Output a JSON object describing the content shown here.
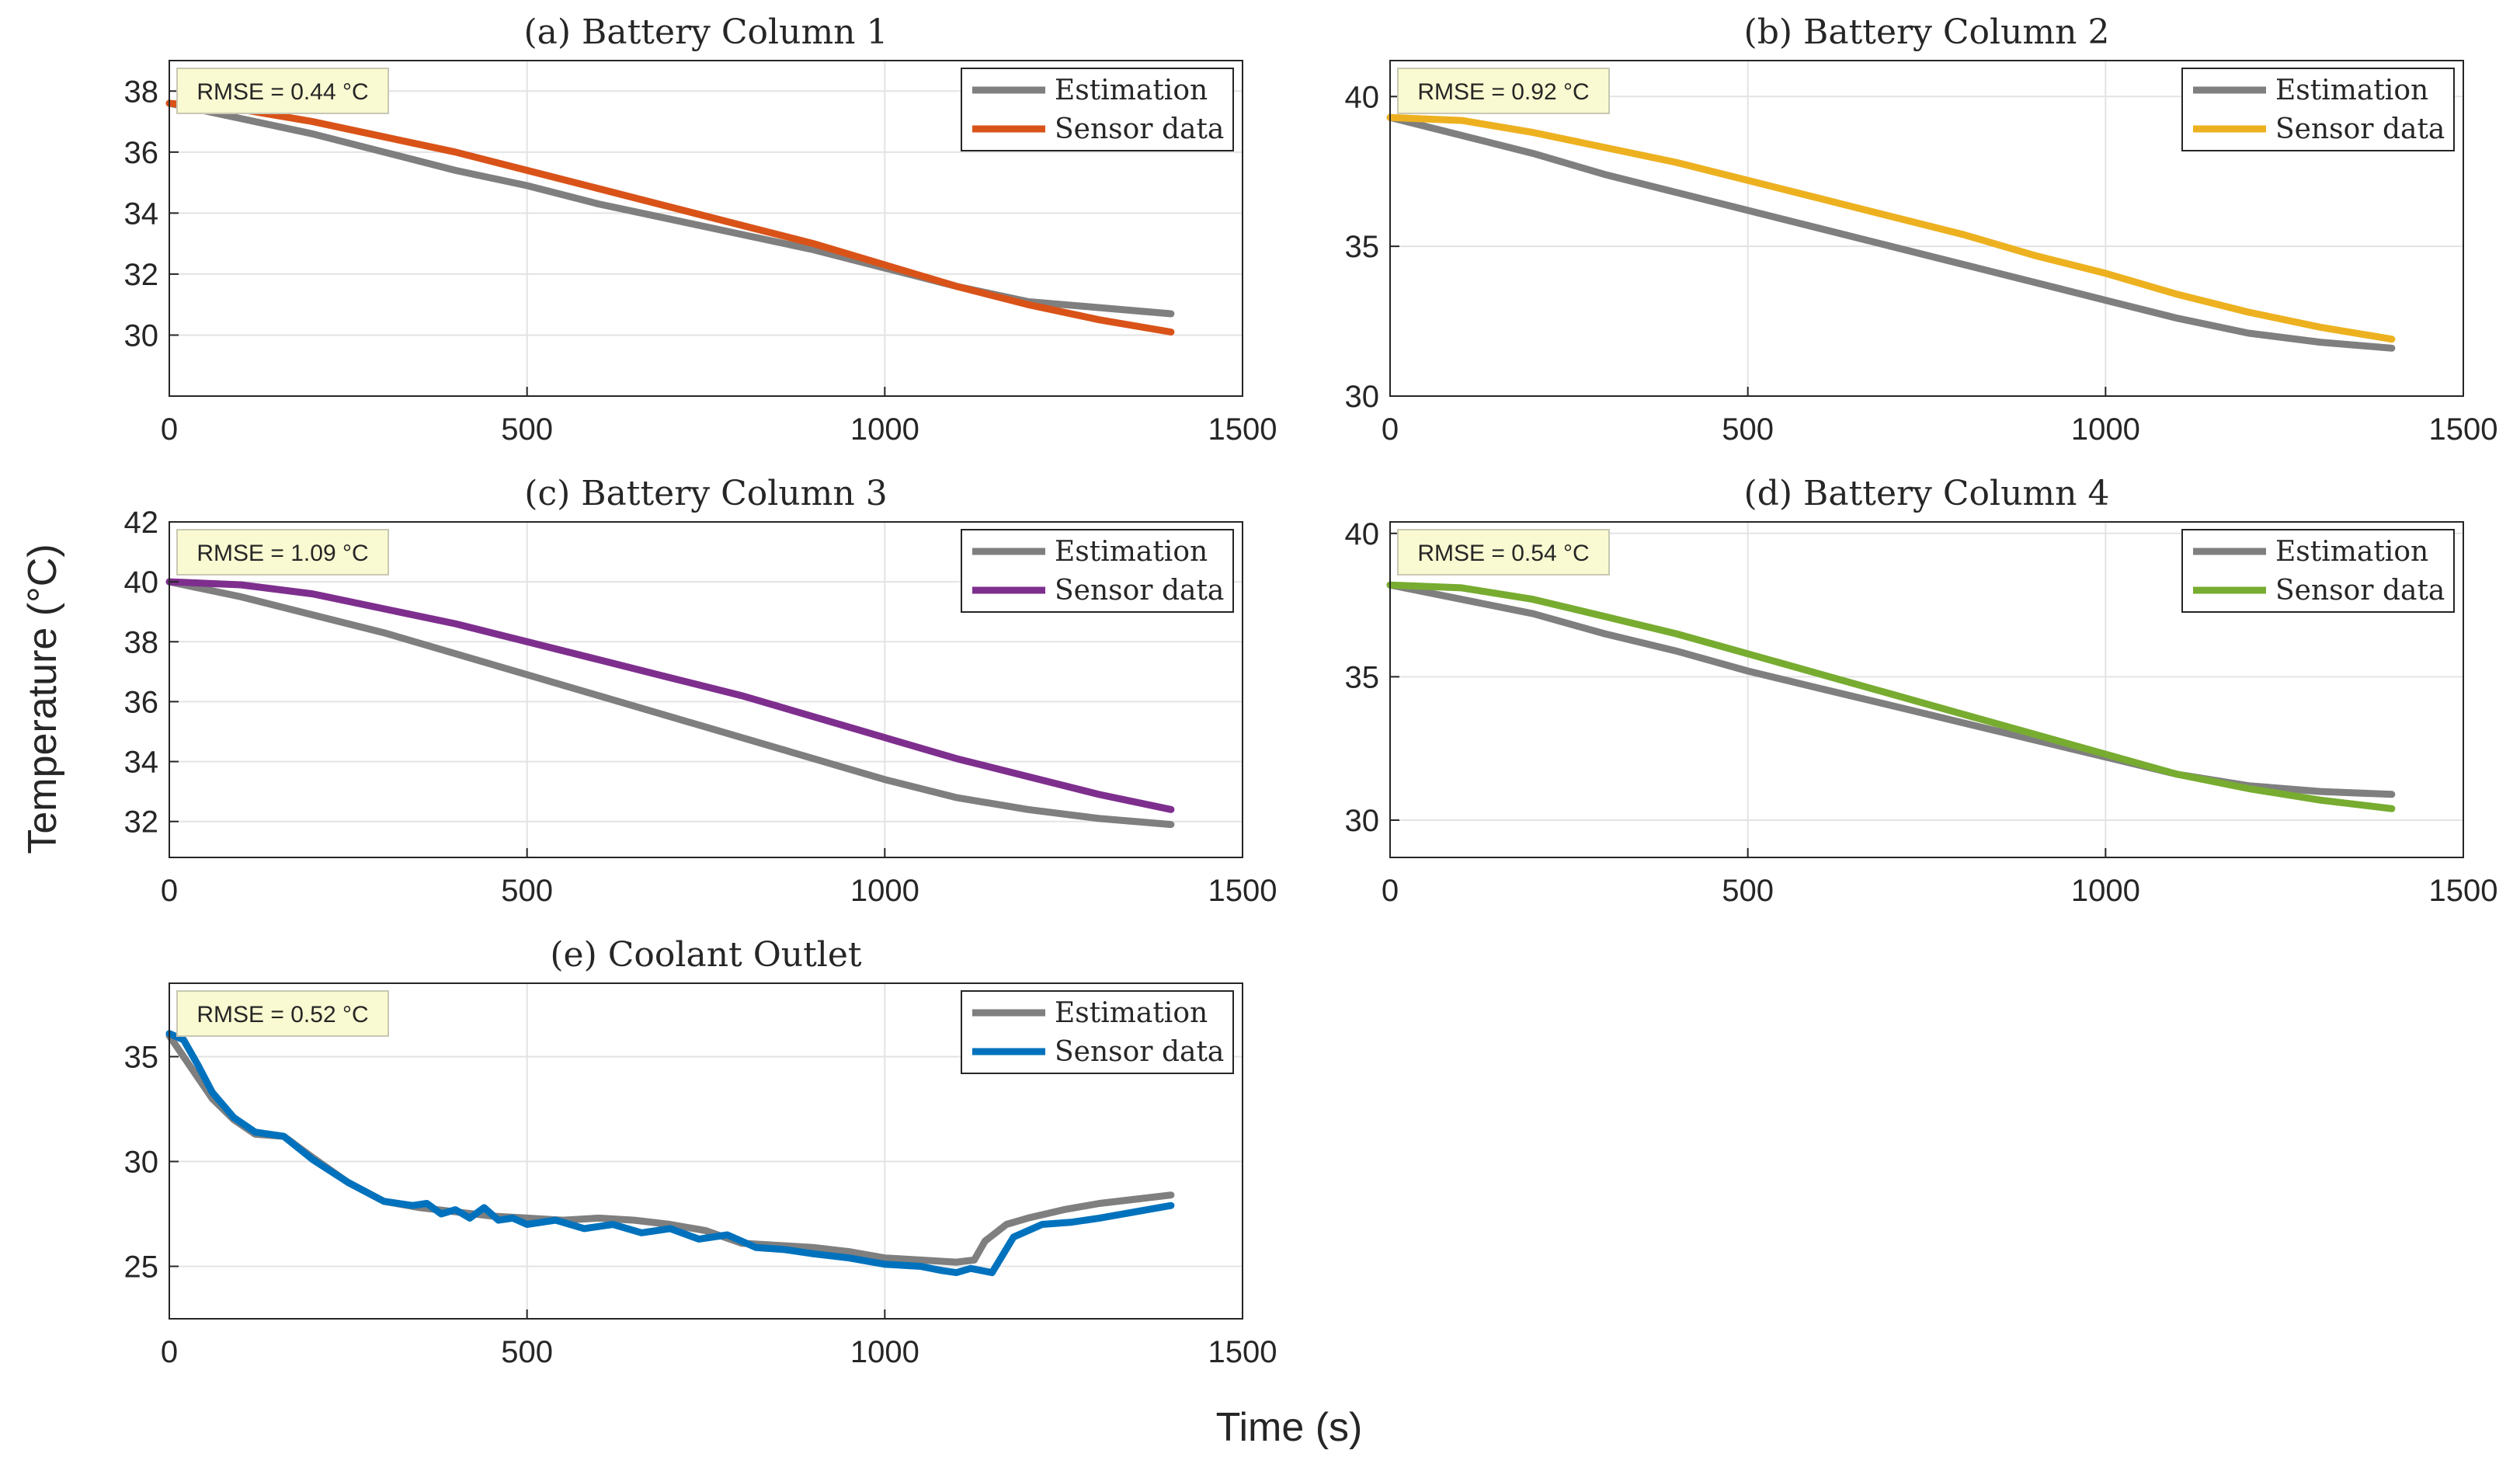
{
  "figure": {
    "xlabel": "Time (s)",
    "ylabel": "Temperature (°C)"
  },
  "colors": {
    "estimation": "#7f7f7f",
    "annotation_bg": "#fafad2",
    "annotation_border": "#c8c8b4"
  },
  "chart_data": [
    {
      "type": "line",
      "title": "(a) Battery Column 1",
      "annotation": "RMSE = 0.44 °C",
      "legend_position": "top-right",
      "grid": true,
      "xlim": [
        0,
        1500
      ],
      "ylim": [
        28,
        39
      ],
      "xticks": [
        0,
        500,
        1000,
        1500
      ],
      "yticks": [
        30,
        32,
        34,
        36,
        38
      ],
      "series": [
        {
          "name": "Estimation",
          "color": "#7f7f7f",
          "x": [
            0,
            100,
            200,
            300,
            400,
            500,
            600,
            700,
            800,
            900,
            1000,
            1100,
            1200,
            1300,
            1400
          ],
          "y": [
            37.6,
            37.1,
            36.6,
            36.0,
            35.4,
            34.9,
            34.3,
            33.8,
            33.3,
            32.8,
            32.2,
            31.6,
            31.1,
            30.9,
            30.7
          ]
        },
        {
          "name": "Sensor data",
          "color": "#d95319",
          "x": [
            0,
            100,
            200,
            300,
            400,
            500,
            600,
            700,
            800,
            900,
            1000,
            1100,
            1200,
            1300,
            1400
          ],
          "y": [
            37.6,
            37.4,
            37.0,
            36.5,
            36.0,
            35.4,
            34.8,
            34.2,
            33.6,
            33.0,
            32.3,
            31.6,
            31.0,
            30.5,
            30.1
          ]
        }
      ]
    },
    {
      "type": "line",
      "title": "(b) Battery Column 2",
      "annotation": "RMSE = 0.92 °C",
      "legend_position": "top-right",
      "grid": true,
      "xlim": [
        0,
        1500
      ],
      "ylim": [
        30,
        41.2
      ],
      "xticks": [
        0,
        500,
        1000,
        1500
      ],
      "yticks": [
        30,
        35,
        40
      ],
      "series": [
        {
          "name": "Estimation",
          "color": "#7f7f7f",
          "x": [
            0,
            100,
            200,
            300,
            400,
            500,
            600,
            700,
            800,
            900,
            1000,
            1100,
            1200,
            1300,
            1400
          ],
          "y": [
            39.3,
            38.7,
            38.1,
            37.4,
            36.8,
            36.2,
            35.6,
            35.0,
            34.4,
            33.8,
            33.2,
            32.6,
            32.1,
            31.8,
            31.6
          ]
        },
        {
          "name": "Sensor data",
          "color": "#edb120",
          "x": [
            0,
            100,
            200,
            300,
            400,
            500,
            600,
            700,
            800,
            900,
            1000,
            1100,
            1200,
            1300,
            1400
          ],
          "y": [
            39.3,
            39.2,
            38.8,
            38.3,
            37.8,
            37.2,
            36.6,
            36.0,
            35.4,
            34.7,
            34.1,
            33.4,
            32.8,
            32.3,
            31.9
          ]
        }
      ]
    },
    {
      "type": "line",
      "title": "(c) Battery Column 3",
      "annotation": "RMSE = 1.09 °C",
      "legend_position": "top-right",
      "grid": true,
      "xlim": [
        0,
        1500
      ],
      "ylim": [
        30.8,
        42
      ],
      "xticks": [
        0,
        500,
        1000,
        1500
      ],
      "yticks": [
        32,
        34,
        36,
        38,
        40,
        42
      ],
      "series": [
        {
          "name": "Estimation",
          "color": "#7f7f7f",
          "x": [
            0,
            100,
            200,
            300,
            400,
            500,
            600,
            700,
            800,
            900,
            1000,
            1100,
            1200,
            1300,
            1400
          ],
          "y": [
            40.0,
            39.5,
            38.9,
            38.3,
            37.6,
            36.9,
            36.2,
            35.5,
            34.8,
            34.1,
            33.4,
            32.8,
            32.4,
            32.1,
            31.9
          ]
        },
        {
          "name": "Sensor data",
          "color": "#7e2f8e",
          "x": [
            0,
            100,
            200,
            300,
            400,
            500,
            600,
            700,
            800,
            900,
            1000,
            1100,
            1200,
            1300,
            1400
          ],
          "y": [
            40.0,
            39.9,
            39.6,
            39.1,
            38.6,
            38.0,
            37.4,
            36.8,
            36.2,
            35.5,
            34.8,
            34.1,
            33.5,
            32.9,
            32.4
          ]
        }
      ]
    },
    {
      "type": "line",
      "title": "(d) Battery Column 4",
      "annotation": "RMSE = 0.54 °C",
      "legend_position": "top-right",
      "grid": true,
      "xlim": [
        0,
        1500
      ],
      "ylim": [
        28.7,
        40.4
      ],
      "xticks": [
        0,
        500,
        1000,
        1500
      ],
      "yticks": [
        30,
        35,
        40
      ],
      "series": [
        {
          "name": "Estimation",
          "color": "#7f7f7f",
          "x": [
            0,
            100,
            200,
            300,
            400,
            500,
            600,
            700,
            800,
            900,
            1000,
            1100,
            1200,
            1300,
            1400
          ],
          "y": [
            38.2,
            37.7,
            37.2,
            36.5,
            35.9,
            35.2,
            34.6,
            34.0,
            33.4,
            32.8,
            32.2,
            31.6,
            31.2,
            31.0,
            30.9
          ]
        },
        {
          "name": "Sensor data",
          "color": "#77ac30",
          "x": [
            0,
            100,
            200,
            300,
            400,
            500,
            600,
            700,
            800,
            900,
            1000,
            1100,
            1200,
            1300,
            1400
          ],
          "y": [
            38.2,
            38.1,
            37.7,
            37.1,
            36.5,
            35.8,
            35.1,
            34.4,
            33.7,
            33.0,
            32.3,
            31.6,
            31.1,
            30.7,
            30.4
          ]
        }
      ]
    },
    {
      "type": "line",
      "title": "(e) Coolant Outlet",
      "annotation": "RMSE = 0.52 °C",
      "legend_position": "top-right",
      "grid": true,
      "xlim": [
        0,
        1500
      ],
      "ylim": [
        22.5,
        38.5
      ],
      "xticks": [
        0,
        500,
        1000,
        1500
      ],
      "yticks": [
        25,
        30,
        35
      ],
      "series": [
        {
          "name": "Estimation",
          "color": "#7f7f7f",
          "x": [
            0,
            30,
            60,
            90,
            120,
            160,
            200,
            250,
            300,
            350,
            400,
            450,
            500,
            550,
            600,
            650,
            700,
            750,
            800,
            850,
            900,
            950,
            1000,
            1050,
            1100,
            1125,
            1140,
            1170,
            1200,
            1250,
            1300,
            1350,
            1400
          ],
          "y": [
            36.0,
            34.5,
            33.0,
            32.0,
            31.3,
            31.2,
            30.2,
            29.0,
            28.1,
            27.8,
            27.6,
            27.4,
            27.3,
            27.2,
            27.3,
            27.2,
            27.0,
            26.7,
            26.1,
            26.0,
            25.9,
            25.7,
            25.4,
            25.3,
            25.2,
            25.3,
            26.2,
            27.0,
            27.3,
            27.7,
            28.0,
            28.2,
            28.4
          ]
        },
        {
          "name": "Sensor data",
          "color": "#0072bd",
          "x": [
            0,
            20,
            40,
            60,
            90,
            120,
            160,
            200,
            250,
            300,
            340,
            360,
            380,
            400,
            420,
            440,
            460,
            480,
            500,
            540,
            580,
            620,
            660,
            700,
            740,
            780,
            820,
            860,
            900,
            950,
            1000,
            1050,
            1080,
            1100,
            1120,
            1150,
            1180,
            1220,
            1260,
            1300,
            1350,
            1400
          ],
          "y": [
            36.1,
            35.8,
            34.6,
            33.3,
            32.1,
            31.4,
            31.2,
            30.1,
            29.0,
            28.1,
            27.9,
            28.0,
            27.5,
            27.7,
            27.3,
            27.8,
            27.2,
            27.3,
            27.0,
            27.2,
            26.8,
            27.0,
            26.6,
            26.8,
            26.3,
            26.5,
            25.9,
            25.8,
            25.6,
            25.4,
            25.1,
            25.0,
            24.8,
            24.7,
            24.9,
            24.7,
            26.4,
            27.0,
            27.1,
            27.3,
            27.6,
            27.9
          ]
        }
      ]
    }
  ]
}
